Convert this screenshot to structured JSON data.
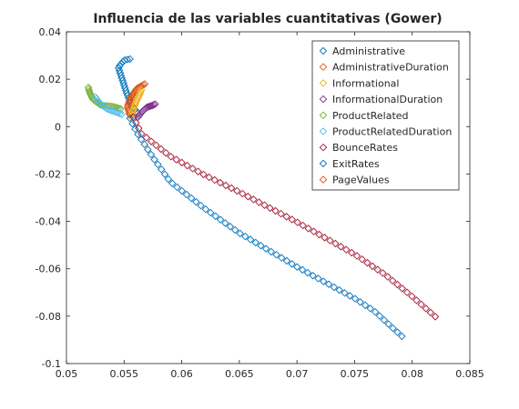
{
  "chart_data": {
    "type": "scatter",
    "title": "Influencia de las variables cuantitativas (Gower)",
    "xlabel": "",
    "ylabel": "",
    "xlim": [
      0.05,
      0.085
    ],
    "ylim": [
      -0.1,
      0.04
    ],
    "xticks": [
      0.05,
      0.055,
      0.06,
      0.065,
      0.07,
      0.075,
      0.08,
      0.085
    ],
    "xtick_labels": [
      "0.05",
      "0.055",
      "0.06",
      "0.065",
      "0.07",
      "0.075",
      "0.08",
      "0.085"
    ],
    "yticks": [
      -0.1,
      -0.08,
      -0.06,
      -0.04,
      -0.02,
      0,
      0.02,
      0.04
    ],
    "ytick_labels": [
      "-0.1",
      "-0.08",
      "-0.06",
      "-0.04",
      "-0.02",
      "0",
      "0.02",
      "0.04"
    ],
    "grid": false,
    "legend_position": "top-right",
    "marker": "diamond",
    "series": [
      {
        "name": "Administrative",
        "color": "#0072bd",
        "path": [
          [
            0.0562,
            0.0055
          ],
          [
            0.0556,
            0.0095
          ],
          [
            0.0552,
            0.0145
          ],
          [
            0.0548,
            0.0205
          ],
          [
            0.0545,
            0.025
          ],
          [
            0.055,
            0.028
          ],
          [
            0.0555,
            0.0285
          ]
        ],
        "n": 26
      },
      {
        "name": "AdministrativeDuration",
        "color": "#d95319",
        "path": [
          [
            0.0555,
            0.005
          ],
          [
            0.0553,
            0.0085
          ],
          [
            0.0556,
            0.0125
          ],
          [
            0.0561,
            0.016
          ],
          [
            0.0568,
            0.018
          ]
        ],
        "n": 22
      },
      {
        "name": "Informational",
        "color": "#edb120",
        "path": [
          [
            0.0556,
            0.004
          ],
          [
            0.0558,
            0.007
          ],
          [
            0.056,
            0.01
          ],
          [
            0.0563,
            0.013
          ],
          [
            0.0565,
            0.0155
          ]
        ],
        "n": 18
      },
      {
        "name": "InformationalDuration",
        "color": "#7e2f8e",
        "path": [
          [
            0.0562,
            0.004
          ],
          [
            0.0566,
            0.0065
          ],
          [
            0.057,
            0.0082
          ],
          [
            0.0575,
            0.009
          ],
          [
            0.0577,
            0.0095
          ]
        ],
        "n": 16
      },
      {
        "name": "ProductRelated",
        "color": "#77ac30",
        "path": [
          [
            0.0547,
            0.0075
          ],
          [
            0.054,
            0.0085
          ],
          [
            0.053,
            0.009
          ],
          [
            0.0523,
            0.0115
          ],
          [
            0.052,
            0.0145
          ],
          [
            0.0519,
            0.0165
          ]
        ],
        "n": 22
      },
      {
        "name": "ProductRelatedDuration",
        "color": "#4dbeee",
        "path": [
          [
            0.0548,
            0.0052
          ],
          [
            0.0542,
            0.0062
          ],
          [
            0.0535,
            0.0075
          ],
          [
            0.0529,
            0.0098
          ],
          [
            0.0525,
            0.0125
          ]
        ],
        "n": 16
      },
      {
        "name": "BounceRates",
        "color": "#a2142f",
        "path": [
          [
            0.0558,
            0.004
          ],
          [
            0.0565,
            -0.003
          ],
          [
            0.059,
            -0.0125
          ],
          [
            0.062,
            -0.0205
          ],
          [
            0.065,
            -0.0276
          ],
          [
            0.07,
            -0.0403
          ],
          [
            0.075,
            -0.0539
          ],
          [
            0.0776,
            -0.0623
          ],
          [
            0.08,
            -0.0717
          ],
          [
            0.082,
            -0.0802
          ]
        ],
        "n": 60
      },
      {
        "name": "ExitRates",
        "color": "#0072bd",
        "path": [
          [
            0.0555,
            0.0035
          ],
          [
            0.0561,
            -0.0025
          ],
          [
            0.0575,
            -0.013
          ],
          [
            0.059,
            -0.0233
          ],
          [
            0.062,
            -0.0346
          ],
          [
            0.065,
            -0.0449
          ],
          [
            0.07,
            -0.0592
          ],
          [
            0.075,
            -0.0725
          ],
          [
            0.0767,
            -0.0778
          ],
          [
            0.0791,
            -0.0885
          ]
        ],
        "n": 60
      },
      {
        "name": "PageValues",
        "color": "#d95319",
        "path": [],
        "n": 0
      }
    ]
  }
}
